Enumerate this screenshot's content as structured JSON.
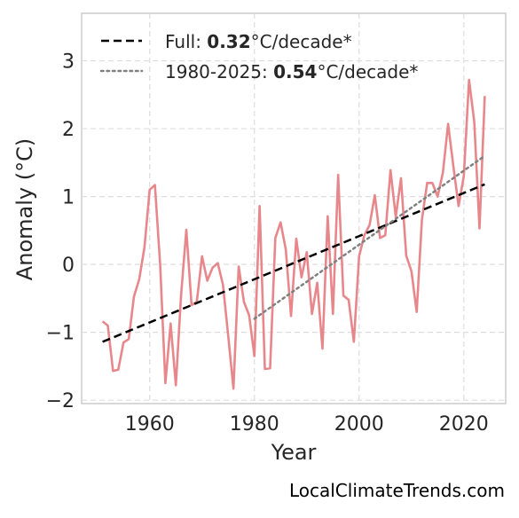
{
  "chart_data": {
    "type": "line",
    "title": "",
    "xlabel": "Year",
    "ylabel": "Anomaly (°C)",
    "xlim": [
      1947,
      2028
    ],
    "ylim": [
      -2.05,
      3.7
    ],
    "xticks": [
      1960,
      1980,
      2000,
      2020
    ],
    "yticks": [
      -2,
      -1,
      0,
      1,
      2,
      3
    ],
    "ytick_labels": [
      "−2",
      "−1",
      "0",
      "1",
      "2",
      "3"
    ],
    "grid": true,
    "legend_position": "top-left",
    "series": [
      {
        "name": "",
        "style": "solid",
        "color": "#e8878b",
        "x": [
          1951,
          1952,
          1953,
          1954,
          1955,
          1956,
          1957,
          1958,
          1959,
          1960,
          1961,
          1962,
          1963,
          1964,
          1965,
          1966,
          1967,
          1968,
          1969,
          1970,
          1971,
          1972,
          1973,
          1974,
          1975,
          1976,
          1977,
          1978,
          1979,
          1980,
          1981,
          1982,
          1983,
          1984,
          1985,
          1986,
          1987,
          1988,
          1989,
          1990,
          1991,
          1992,
          1993,
          1994,
          1995,
          1996,
          1997,
          1998,
          1999,
          2000,
          2001,
          2002,
          2003,
          2004,
          2005,
          2006,
          2007,
          2008,
          2009,
          2010,
          2011,
          2012,
          2013,
          2014,
          2015,
          2016,
          2017,
          2018,
          2019,
          2020,
          2021,
          2022,
          2023,
          2024
        ],
        "y": [
          -0.84,
          -0.9,
          -1.57,
          -1.55,
          -1.15,
          -1.1,
          -0.47,
          -0.22,
          0.25,
          1.1,
          1.17,
          0.0,
          -1.75,
          -0.87,
          -1.78,
          -0.45,
          0.51,
          -0.6,
          -0.55,
          0.12,
          -0.24,
          -0.05,
          0.02,
          -0.3,
          -1.05,
          -1.83,
          -0.03,
          -0.55,
          -0.75,
          -1.35,
          0.86,
          -1.54,
          -1.53,
          0.39,
          0.62,
          0.22,
          -0.76,
          0.38,
          -0.19,
          0.18,
          -0.73,
          -0.27,
          -1.24,
          0.71,
          -0.73,
          1.32,
          -0.46,
          -0.52,
          -1.14,
          0.12,
          0.43,
          0.58,
          1.02,
          0.39,
          0.43,
          1.39,
          0.7,
          1.27,
          0.13,
          -0.1,
          -0.7,
          0.66,
          1.2,
          1.2,
          1.0,
          1.35,
          2.07,
          1.45,
          0.86,
          1.3,
          2.72,
          2.1,
          0.53,
          2.48
        ]
      },
      {
        "name": "Full",
        "style": "dashed",
        "color": "#000000",
        "x": [
          1951,
          2024
        ],
        "y": [
          -1.14,
          1.18
        ]
      },
      {
        "name": "1980-2025",
        "style": "dotted",
        "color": "#808080",
        "x": [
          1980,
          2024
        ],
        "y": [
          -0.8,
          1.6
        ]
      }
    ],
    "legend": [
      {
        "prefix": "Full: ",
        "value": "0.32",
        "suffix": "°C/decade*"
      },
      {
        "prefix": "1980-2025: ",
        "value": "0.54",
        "suffix": "°C/decade*"
      }
    ]
  },
  "credit": "LocalClimateTrends.com"
}
